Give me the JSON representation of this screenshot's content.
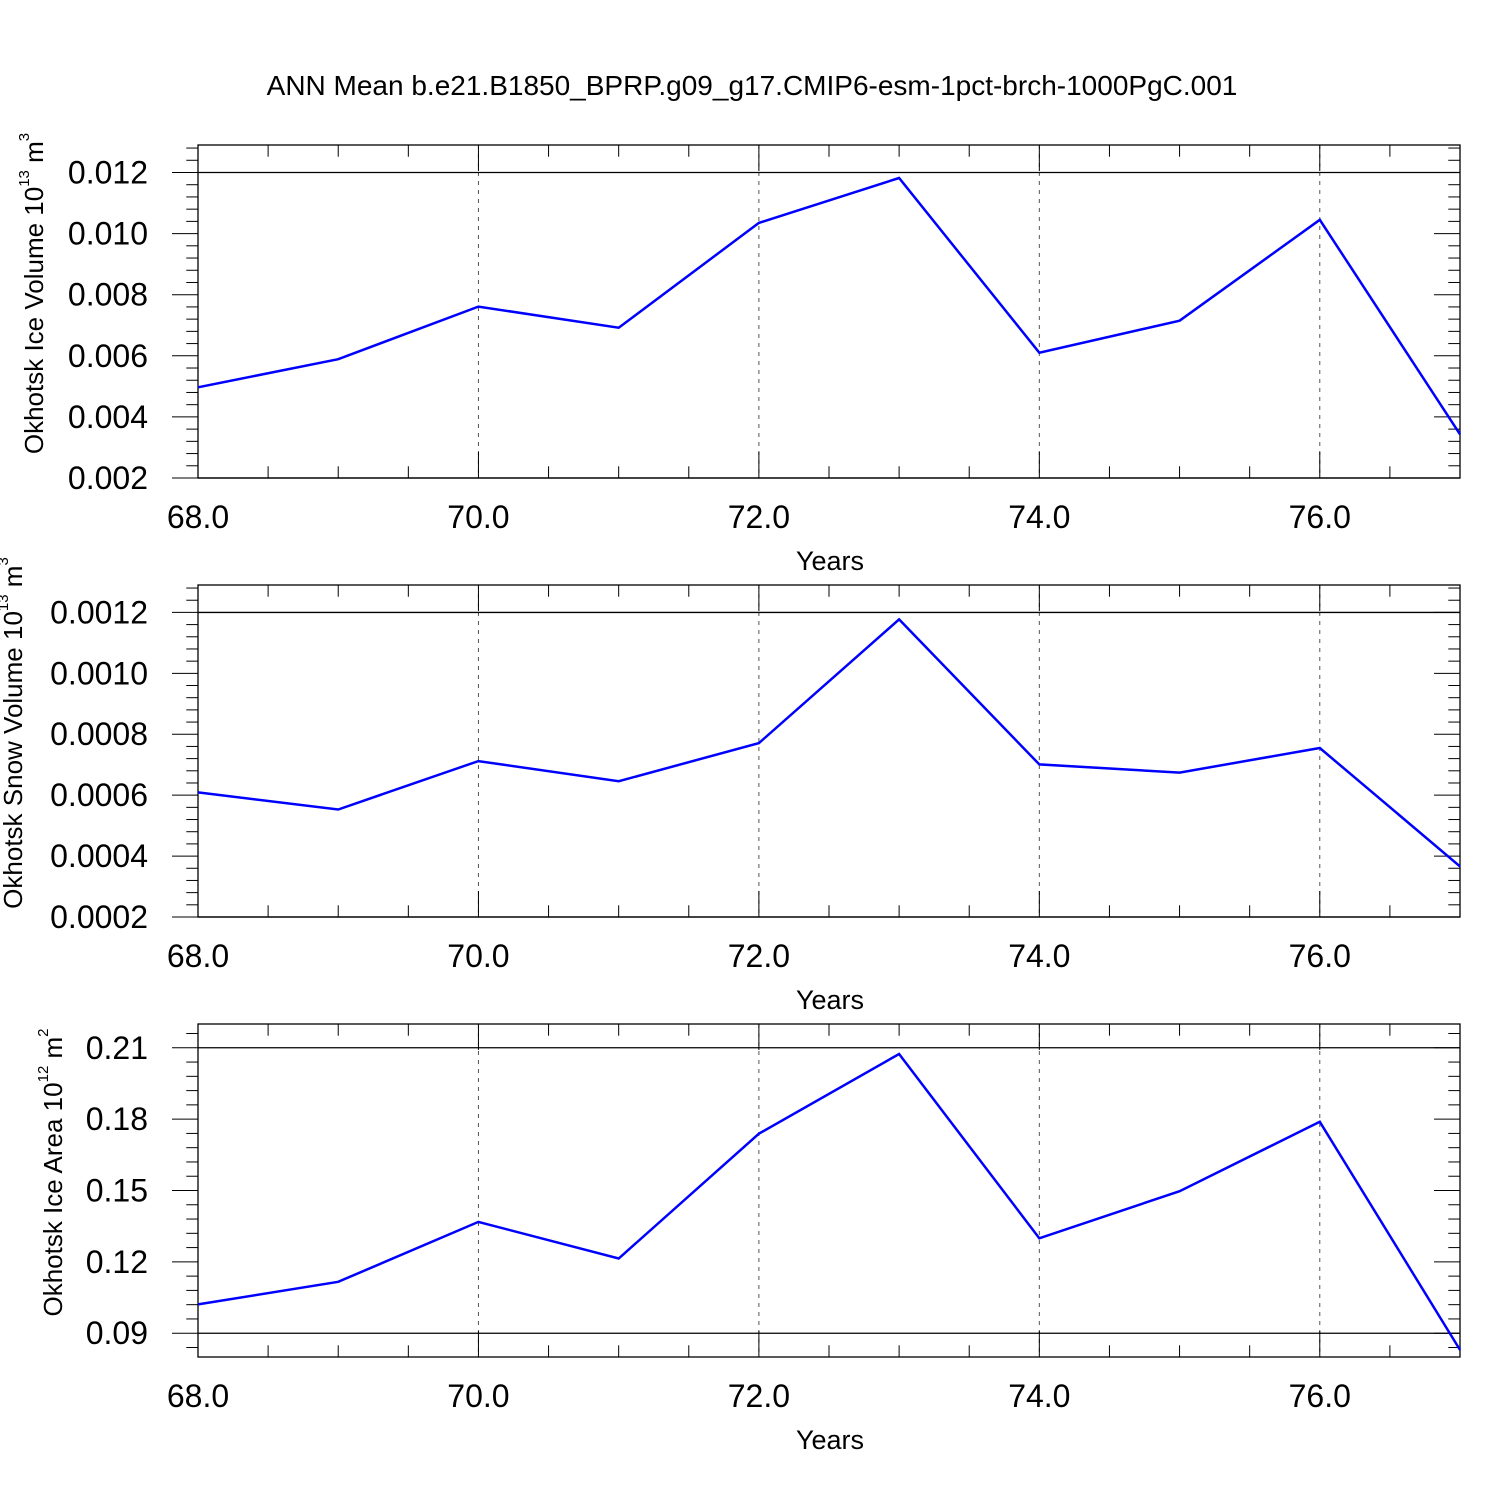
{
  "figure_title": "ANN Mean b.e21.B1850_BPRP.g09_g17.CMIP6-esm-1pct-brch-1000PgC.001",
  "line_color": "#0000ff",
  "chart_data": [
    {
      "type": "line",
      "x": [
        68,
        69,
        70,
        71,
        72,
        73,
        74,
        75,
        76,
        77
      ],
      "series": [
        {
          "values": [
            0.00497,
            0.00589,
            0.00761,
            0.00692,
            0.01035,
            0.01182,
            0.0061,
            0.00715,
            0.01045,
            0.00343
          ]
        }
      ],
      "xlabel": "Years",
      "ylabel": {
        "main": "Okhotsk Ice Volume 10",
        "exponent": "13",
        "unit": "m",
        "unit_exponent": "3"
      },
      "xlim": [
        68,
        77
      ],
      "ylim": [
        0.002,
        0.0129
      ],
      "xticks": [
        68,
        70,
        72,
        74,
        76
      ],
      "xtick_labels": [
        "68.0",
        "70.0",
        "72.0",
        "74.0",
        "76.0"
      ],
      "yticks": [
        0.002,
        0.004,
        0.006,
        0.008,
        0.01,
        0.012
      ],
      "ytick_labels": [
        "0.002",
        "0.004",
        "0.006",
        "0.008",
        "0.010",
        "0.012"
      ],
      "grid": "dashed vertical at major x ticks"
    },
    {
      "type": "line",
      "x": [
        68,
        69,
        70,
        71,
        72,
        73,
        74,
        75,
        76,
        77
      ],
      "series": [
        {
          "values": [
            0.000609,
            0.000553,
            0.000712,
            0.000646,
            0.000771,
            0.001177,
            0.000701,
            0.000674,
            0.000755,
            0.000366
          ]
        }
      ],
      "xlabel": "Years",
      "ylabel": {
        "main": "Okhotsk Snow Volume 10",
        "exponent": "13",
        "unit": "m",
        "unit_exponent": "3"
      },
      "xlim": [
        68,
        77
      ],
      "ylim": [
        0.0002,
        0.00129
      ],
      "xticks": [
        68,
        70,
        72,
        74,
        76
      ],
      "xtick_labels": [
        "68.0",
        "70.0",
        "72.0",
        "74.0",
        "76.0"
      ],
      "yticks": [
        0.0002,
        0.0004,
        0.0006,
        0.0008,
        0.001,
        0.0012
      ],
      "ytick_labels": [
        "0.0002",
        "0.0004",
        "0.0006",
        "0.0008",
        "0.0010",
        "0.0012"
      ],
      "grid": "dashed vertical at major x ticks"
    },
    {
      "type": "line",
      "x": [
        68,
        69,
        70,
        71,
        72,
        73,
        74,
        75,
        76,
        77
      ],
      "series": [
        {
          "values": [
            0.1021,
            0.1116,
            0.1368,
            0.1214,
            0.1739,
            0.2074,
            0.1299,
            0.1497,
            0.1789,
            0.083
          ]
        }
      ],
      "xlabel": "Years",
      "ylabel": {
        "main": "Okhotsk Ice Area 10",
        "exponent": "12",
        "unit": "m",
        "unit_exponent": "2"
      },
      "xlim": [
        68,
        77
      ],
      "ylim": [
        0.08,
        0.22
      ],
      "xticks": [
        68,
        70,
        72,
        74,
        76
      ],
      "xtick_labels": [
        "68.0",
        "70.0",
        "72.0",
        "74.0",
        "76.0"
      ],
      "yticks": [
        0.09,
        0.12,
        0.15,
        0.18,
        0.21
      ],
      "ytick_labels": [
        "0.09",
        "0.12",
        "0.15",
        "0.18",
        "0.21"
      ],
      "grid": "dashed vertical at major x ticks"
    }
  ]
}
